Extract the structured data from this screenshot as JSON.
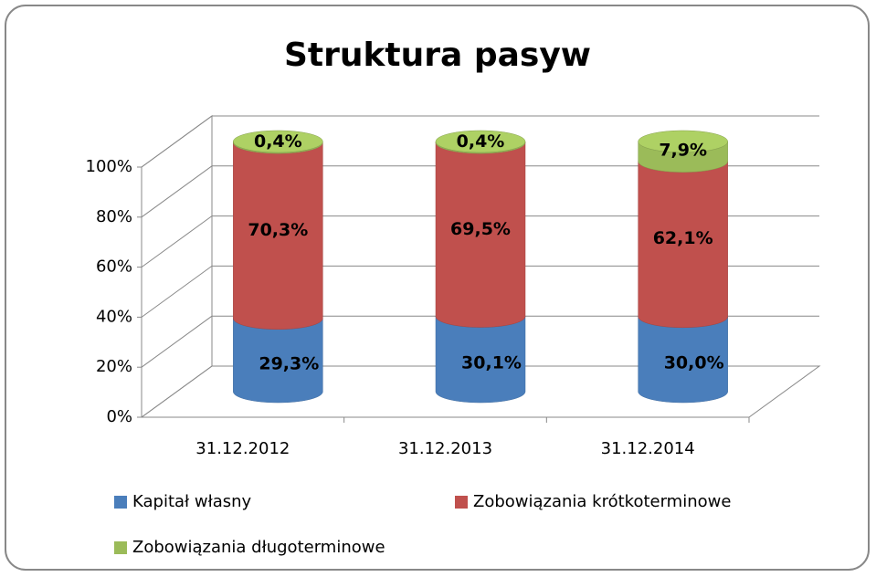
{
  "chart_data": {
    "type": "bar3d-stacked-cylinder",
    "title": "Struktura pasyw",
    "categories": [
      "31.12.2012",
      "31.12.2013",
      "31.12.2014"
    ],
    "series": [
      {
        "name": "Kapitał własny",
        "color": "#4a7ebb",
        "values": [
          29.3,
          30.1,
          30.0
        ],
        "value_labels": [
          "29,3%",
          "30,1%",
          "30,0%"
        ]
      },
      {
        "name": "Zobowiązania krótkoterminowe",
        "color": "#c0504d",
        "values": [
          70.3,
          69.5,
          62.1
        ],
        "value_labels": [
          "70,3%",
          "69,5%",
          "62,1%"
        ]
      },
      {
        "name": "Zobowiązania długoterminowe",
        "color": "#9bbb59",
        "values": [
          0.4,
          0.4,
          7.9
        ],
        "value_labels": [
          "0,4%",
          "0,4%",
          "7,9%"
        ]
      }
    ],
    "ylim": [
      0,
      100
    ],
    "yticks": [
      {
        "value": 0,
        "label": "0%"
      },
      {
        "value": 20,
        "label": "20%"
      },
      {
        "value": 40,
        "label": "40%"
      },
      {
        "value": 60,
        "label": "60%"
      },
      {
        "value": 80,
        "label": "80%"
      },
      {
        "value": 100,
        "label": "100%"
      }
    ],
    "grid": true,
    "legend": "bottom"
  }
}
